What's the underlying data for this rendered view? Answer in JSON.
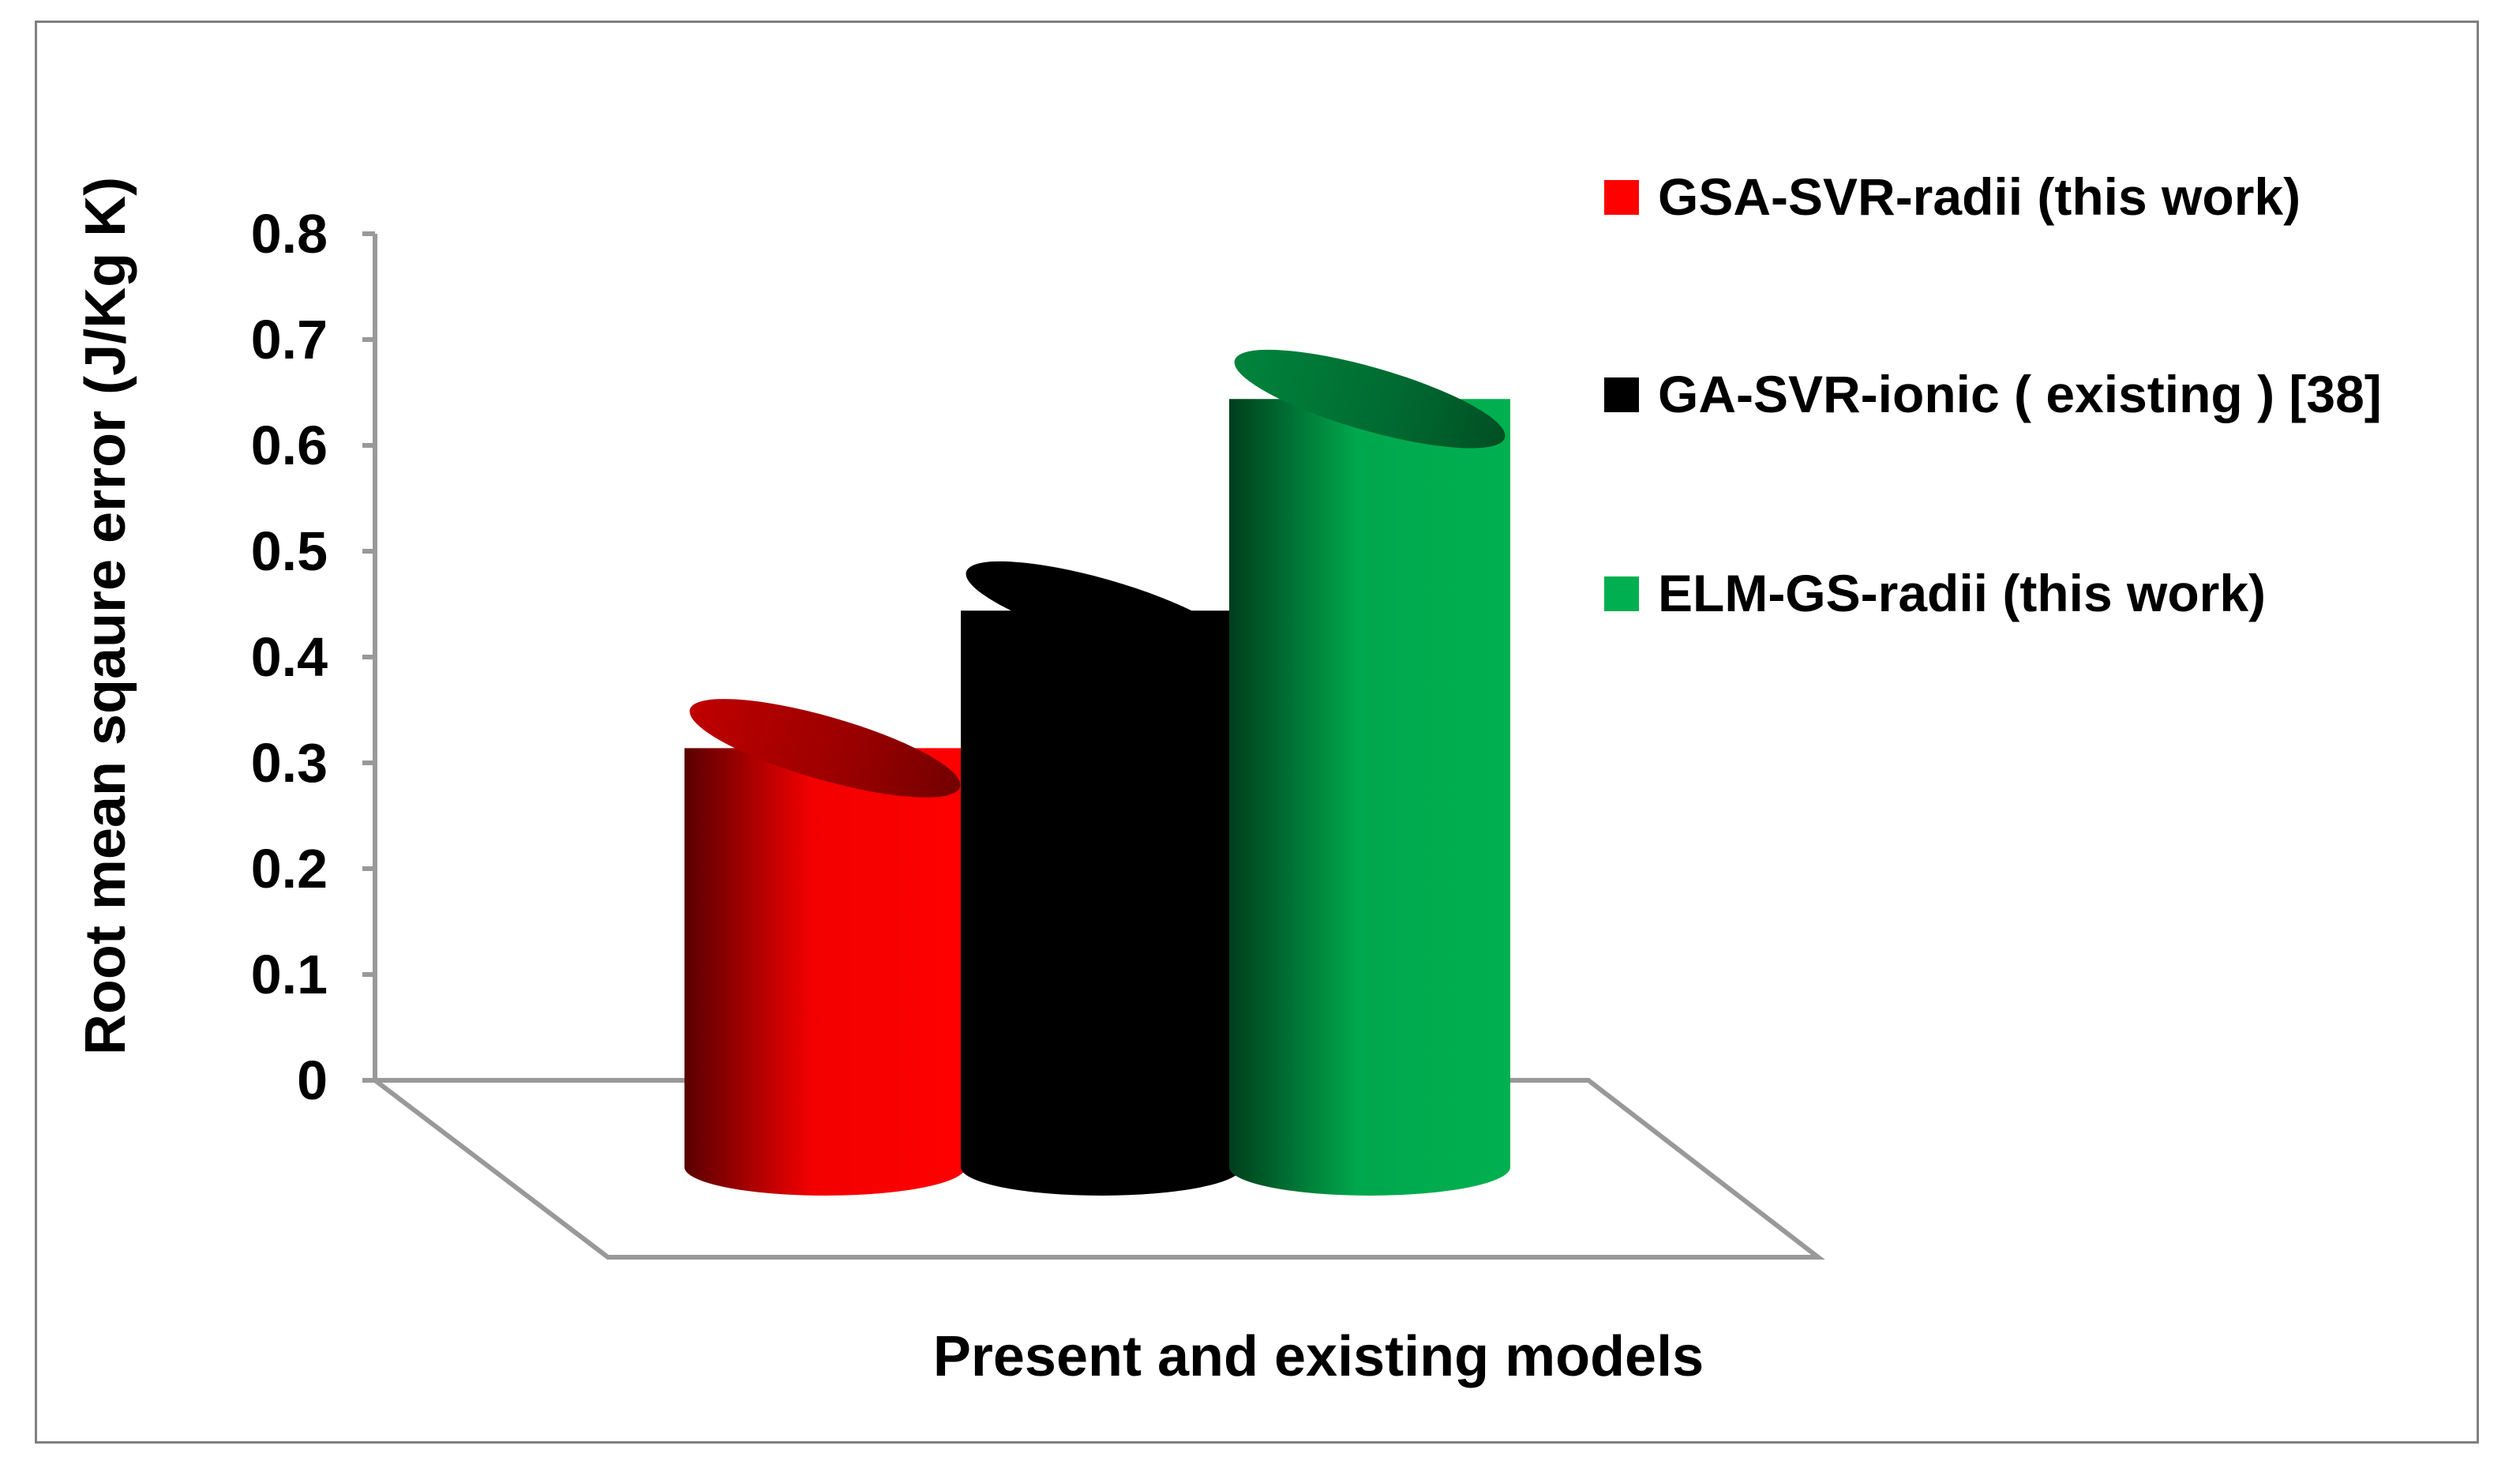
{
  "chart_data": {
    "type": "bar",
    "style": "3d-cylinder",
    "categories": [
      ""
    ],
    "series": [
      {
        "name": "GSA-SVR-radii (this work)",
        "values": [
          0.39
        ],
        "color": "#ff0000"
      },
      {
        "name": "GA-SVR-ionic ( existing ) [38]",
        "values": [
          0.52
        ],
        "color": "#000000"
      },
      {
        "name": "ELM-GS-radii (this work)",
        "values": [
          0.72
        ],
        "color": "#00b050"
      }
    ],
    "title": "",
    "xlabel": "Present and existing models",
    "ylabel": "Root mean sqaure error (J/Kg K)",
    "ylim": [
      0,
      0.8
    ],
    "yticks": [
      "0",
      "0.1",
      "0.2",
      "0.3",
      "0.4",
      "0.5",
      "0.6",
      "0.7",
      "0.8"
    ],
    "grid": false,
    "legend_position": "right"
  }
}
